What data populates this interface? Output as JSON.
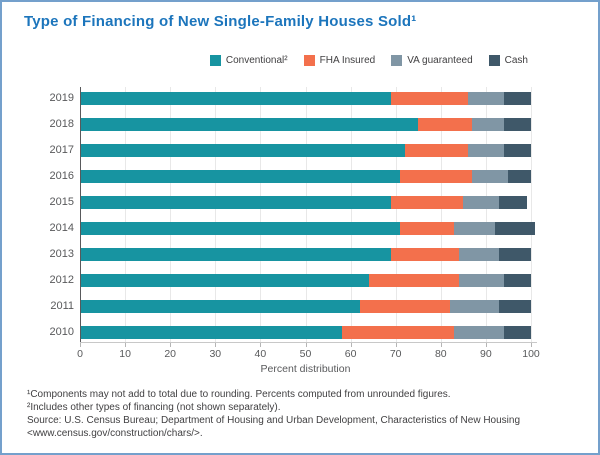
{
  "card": {
    "title": "Type of Financing of New Single-Family Houses Sold¹"
  },
  "chart_data": {
    "type": "bar",
    "stacked": true,
    "orientation": "horizontal",
    "title": "Type of Financing of New Single-Family Houses Sold¹",
    "categories": [
      "2019",
      "2018",
      "2017",
      "2016",
      "2015",
      "2014",
      "2013",
      "2012",
      "2011",
      "2010"
    ],
    "series": [
      {
        "name": "Conventional²",
        "color": "#1794a1",
        "values": [
          69,
          75,
          72,
          71,
          69,
          71,
          69,
          64,
          62,
          58
        ]
      },
      {
        "name": "FHA Insured",
        "color": "#f3704c",
        "values": [
          17,
          12,
          14,
          16,
          16,
          12,
          15,
          20,
          20,
          25
        ]
      },
      {
        "name": "VA guaranteed",
        "color": "#8096a5",
        "values": [
          8,
          7,
          8,
          8,
          8,
          9,
          9,
          10,
          11,
          11
        ]
      },
      {
        "name": "Cash",
        "color": "#3f5869",
        "values": [
          6,
          6,
          6,
          5,
          6,
          9,
          7,
          6,
          7,
          6
        ]
      }
    ],
    "xlabel": "Percent distribution",
    "xlim": [
      0,
      100
    ],
    "xticks": [
      0,
      10,
      20,
      30,
      40,
      50,
      60,
      70,
      80,
      90,
      100
    ],
    "grid": true,
    "legend_position": "top-right"
  },
  "footnotes": [
    "¹Components may not add to total due to rounding. Percents computed from unrounded figures.",
    "²Includes other types of financing (not shown separately).",
    "Source: U.S. Census Bureau; Department of Housing and Urban Development, Characteristics of New Housing",
    "<www.census.gov/construction/chars/>."
  ],
  "colors": {
    "title": "#1c75bc",
    "border": "#74a0cc",
    "axis_text": "#58595b",
    "footnote_text": "#414042",
    "gridline": "#e8e8e8"
  }
}
